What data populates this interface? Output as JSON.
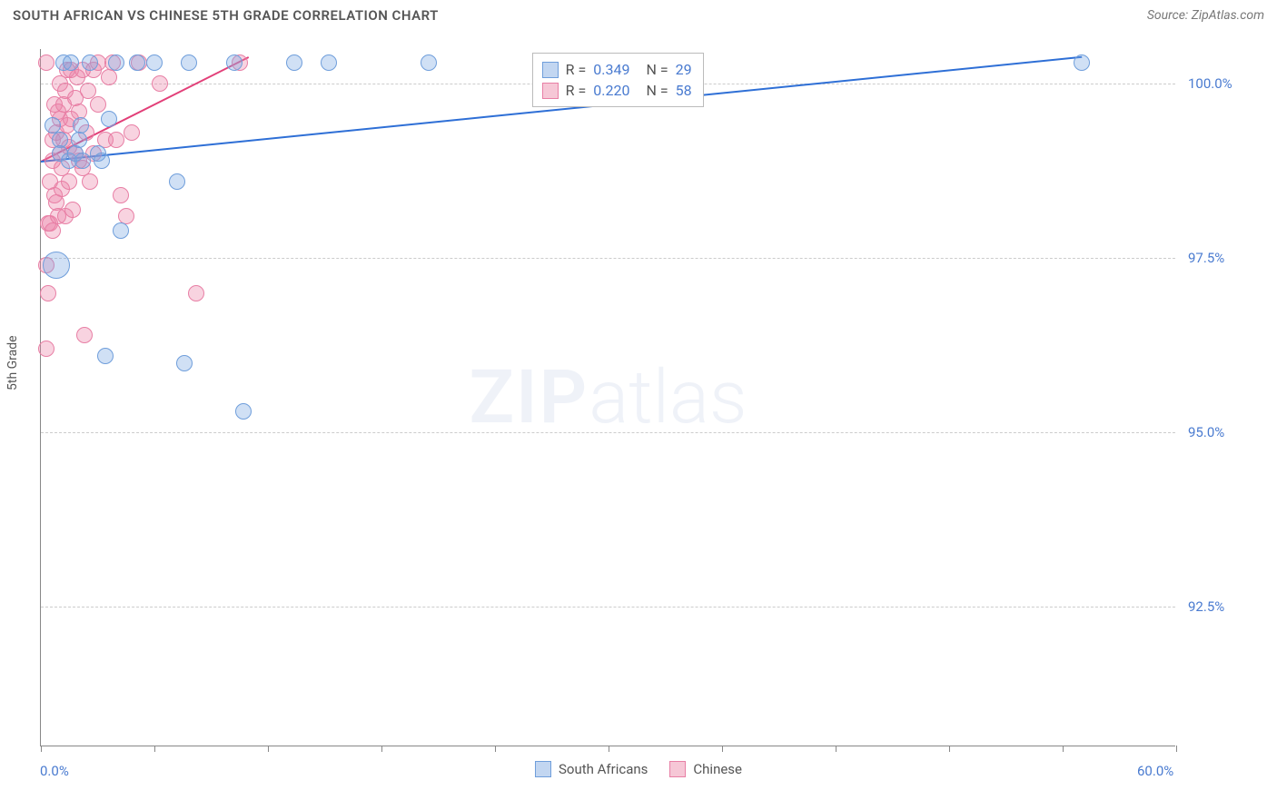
{
  "header": {
    "title": "SOUTH AFRICAN VS CHINESE 5TH GRADE CORRELATION CHART",
    "source": "Source: ZipAtlas.com"
  },
  "axes": {
    "ylabel": "5th Grade",
    "xlim": [
      0,
      60
    ],
    "ylim": [
      90.5,
      100.5
    ],
    "yticks": [
      {
        "value": 100.0,
        "label": "100.0%"
      },
      {
        "value": 97.5,
        "label": "97.5%"
      },
      {
        "value": 95.0,
        "label": "95.0%"
      },
      {
        "value": 92.5,
        "label": "92.5%"
      }
    ],
    "xticks_major": [
      0,
      30,
      60
    ],
    "xticks_minor": [
      6,
      12,
      18,
      24,
      36,
      42,
      48,
      54
    ],
    "xlabels": [
      {
        "value": 0,
        "label": "0.0%"
      },
      {
        "value": 60,
        "label": "60.0%"
      }
    ],
    "grid_color": "#cccccc",
    "axis_color": "#888888",
    "tick_label_color": "#4a7bd0"
  },
  "watermark": {
    "zip": "ZIP",
    "atlas": "atlas"
  },
  "series": {
    "south_africans": {
      "label": "South Africans",
      "fill": "rgba(120,165,225,0.35)",
      "stroke": "#6f9edb",
      "radius": 9,
      "R": "0.349",
      "N": "29",
      "trend": {
        "x1": 0,
        "y1": 98.9,
        "x2": 55,
        "y2": 100.4,
        "color": "#2e6fd6"
      },
      "points": [
        {
          "x": 0.6,
          "y": 99.4
        },
        {
          "x": 0.8,
          "y": 97.4,
          "r": 15
        },
        {
          "x": 1.0,
          "y": 99.2
        },
        {
          "x": 1.0,
          "y": 99.0
        },
        {
          "x": 1.2,
          "y": 100.3
        },
        {
          "x": 1.5,
          "y": 98.9
        },
        {
          "x": 1.6,
          "y": 100.3
        },
        {
          "x": 1.8,
          "y": 99.0
        },
        {
          "x": 2.0,
          "y": 99.2
        },
        {
          "x": 2.1,
          "y": 99.4
        },
        {
          "x": 2.2,
          "y": 98.9
        },
        {
          "x": 2.6,
          "y": 100.3
        },
        {
          "x": 3.0,
          "y": 99.0
        },
        {
          "x": 3.2,
          "y": 98.9
        },
        {
          "x": 3.4,
          "y": 96.1
        },
        {
          "x": 3.6,
          "y": 99.5
        },
        {
          "x": 4.0,
          "y": 100.3
        },
        {
          "x": 4.2,
          "y": 97.9
        },
        {
          "x": 5.1,
          "y": 100.3
        },
        {
          "x": 6.0,
          "y": 100.3
        },
        {
          "x": 7.2,
          "y": 98.6
        },
        {
          "x": 7.6,
          "y": 96.0
        },
        {
          "x": 7.8,
          "y": 100.3
        },
        {
          "x": 10.2,
          "y": 100.3
        },
        {
          "x": 10.7,
          "y": 95.3
        },
        {
          "x": 13.4,
          "y": 100.3
        },
        {
          "x": 15.2,
          "y": 100.3
        },
        {
          "x": 20.5,
          "y": 100.3
        },
        {
          "x": 55.0,
          "y": 100.3
        }
      ]
    },
    "chinese": {
      "label": "Chinese",
      "fill": "rgba(235,130,165,0.35)",
      "stroke": "#e87fa5",
      "radius": 9,
      "R": "0.220",
      "N": "58",
      "trend": {
        "x1": 0,
        "y1": 98.9,
        "x2": 11,
        "y2": 100.4,
        "color": "#e23f78"
      },
      "points": [
        {
          "x": 0.3,
          "y": 97.4
        },
        {
          "x": 0.3,
          "y": 96.2
        },
        {
          "x": 0.3,
          "y": 100.3
        },
        {
          "x": 0.4,
          "y": 97.0
        },
        {
          "x": 0.4,
          "y": 98.0
        },
        {
          "x": 0.5,
          "y": 98.0
        },
        {
          "x": 0.5,
          "y": 98.6
        },
        {
          "x": 0.6,
          "y": 98.9
        },
        {
          "x": 0.6,
          "y": 99.2
        },
        {
          "x": 0.6,
          "y": 97.9
        },
        {
          "x": 0.7,
          "y": 98.4
        },
        {
          "x": 0.7,
          "y": 99.7
        },
        {
          "x": 0.8,
          "y": 98.3
        },
        {
          "x": 0.8,
          "y": 99.3
        },
        {
          "x": 0.9,
          "y": 99.6
        },
        {
          "x": 0.9,
          "y": 98.1
        },
        {
          "x": 1.0,
          "y": 99.0
        },
        {
          "x": 1.0,
          "y": 100.0
        },
        {
          "x": 1.0,
          "y": 99.5
        },
        {
          "x": 1.1,
          "y": 98.8
        },
        {
          "x": 1.1,
          "y": 98.5
        },
        {
          "x": 1.2,
          "y": 99.7
        },
        {
          "x": 1.2,
          "y": 99.2
        },
        {
          "x": 1.3,
          "y": 98.1
        },
        {
          "x": 1.3,
          "y": 99.9
        },
        {
          "x": 1.4,
          "y": 99.4
        },
        {
          "x": 1.4,
          "y": 100.2
        },
        {
          "x": 1.5,
          "y": 98.6
        },
        {
          "x": 1.5,
          "y": 99.1
        },
        {
          "x": 1.6,
          "y": 100.2
        },
        {
          "x": 1.6,
          "y": 99.5
        },
        {
          "x": 1.7,
          "y": 98.2
        },
        {
          "x": 1.8,
          "y": 99.8
        },
        {
          "x": 1.8,
          "y": 99.0
        },
        {
          "x": 1.9,
          "y": 100.1
        },
        {
          "x": 2.0,
          "y": 99.6
        },
        {
          "x": 2.0,
          "y": 98.9
        },
        {
          "x": 2.2,
          "y": 100.2
        },
        {
          "x": 2.2,
          "y": 98.8
        },
        {
          "x": 2.3,
          "y": 96.4
        },
        {
          "x": 2.4,
          "y": 99.3
        },
        {
          "x": 2.5,
          "y": 99.9
        },
        {
          "x": 2.6,
          "y": 98.6
        },
        {
          "x": 2.8,
          "y": 100.2
        },
        {
          "x": 2.8,
          "y": 99.0
        },
        {
          "x": 3.0,
          "y": 99.7
        },
        {
          "x": 3.0,
          "y": 100.3
        },
        {
          "x": 3.4,
          "y": 99.2
        },
        {
          "x": 3.6,
          "y": 100.1
        },
        {
          "x": 3.8,
          "y": 100.3
        },
        {
          "x": 4.0,
          "y": 99.2
        },
        {
          "x": 4.2,
          "y": 98.4
        },
        {
          "x": 4.5,
          "y": 98.1
        },
        {
          "x": 4.8,
          "y": 99.3
        },
        {
          "x": 5.2,
          "y": 100.3
        },
        {
          "x": 6.3,
          "y": 100.0
        },
        {
          "x": 8.2,
          "y": 97.0
        },
        {
          "x": 10.5,
          "y": 100.3
        }
      ]
    }
  },
  "stats_box": {
    "rows": [
      {
        "swatch_fill": "rgba(120,165,225,0.45)",
        "swatch_stroke": "#6f9edb",
        "R_label": "R =",
        "R": "0.349",
        "N_label": "N =",
        "N": "29"
      },
      {
        "swatch_fill": "rgba(235,130,165,0.45)",
        "swatch_stroke": "#e87fa5",
        "R_label": "R =",
        "R": "0.220",
        "N_label": "N =",
        "N": "58"
      }
    ]
  },
  "bottom_legend": [
    {
      "fill": "rgba(120,165,225,0.45)",
      "stroke": "#6f9edb",
      "label": "South Africans"
    },
    {
      "fill": "rgba(235,130,165,0.45)",
      "stroke": "#e87fa5",
      "label": "Chinese"
    }
  ]
}
